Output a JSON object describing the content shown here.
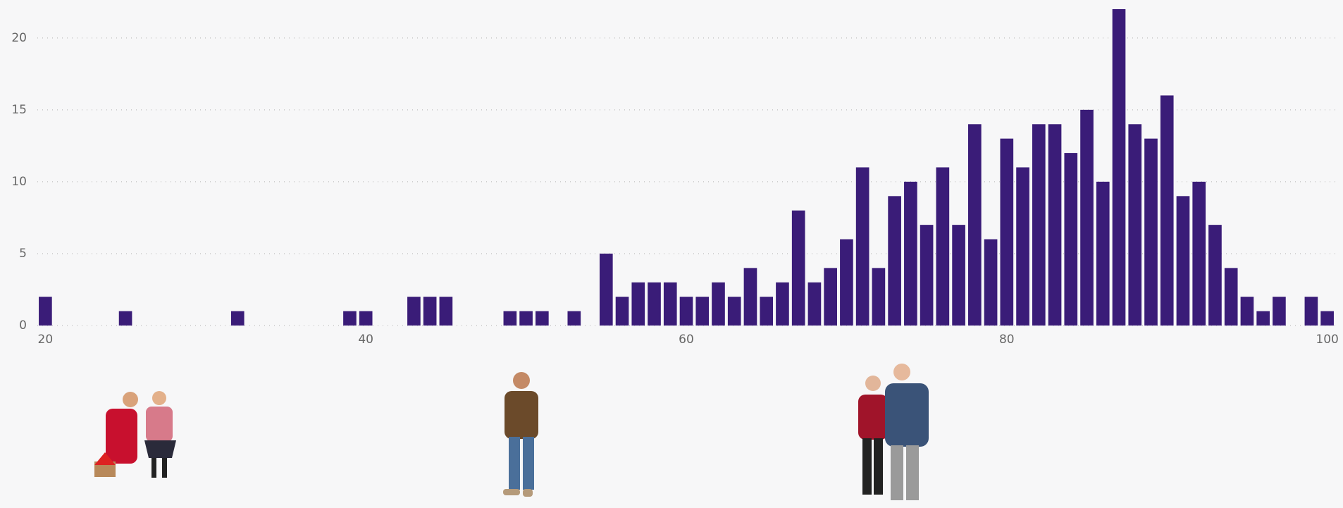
{
  "chart_data": {
    "type": "bar",
    "x": [
      20,
      25,
      32,
      39,
      40,
      43,
      44,
      45,
      49,
      50,
      51,
      53,
      55,
      56,
      57,
      58,
      59,
      60,
      61,
      62,
      63,
      64,
      65,
      66,
      67,
      68,
      69,
      70,
      71,
      72,
      73,
      74,
      75,
      76,
      77,
      78,
      79,
      80,
      81,
      82,
      83,
      84,
      85,
      86,
      87,
      88,
      89,
      90,
      91,
      92,
      93,
      94,
      95,
      96,
      97,
      99,
      100
    ],
    "values": [
      2,
      1,
      1,
      1,
      1,
      2,
      2,
      2,
      1,
      1,
      1,
      1,
      5,
      2,
      3,
      3,
      3,
      2,
      2,
      3,
      2,
      4,
      2,
      3,
      8,
      3,
      4,
      6,
      11,
      4,
      9,
      10,
      7,
      11,
      7,
      14,
      6,
      13,
      11,
      14,
      14,
      12,
      15,
      10,
      22,
      14,
      13,
      16,
      9,
      10,
      7,
      4,
      2,
      1,
      2,
      2,
      1
    ],
    "color": "#3a1c78",
    "xlim": [
      19.5,
      100.5
    ],
    "xticks": [
      20,
      40,
      60,
      80,
      100
    ],
    "ylim": [
      0,
      22
    ],
    "yticks": [
      0,
      5,
      10,
      15,
      20
    ],
    "grid": true
  }
}
